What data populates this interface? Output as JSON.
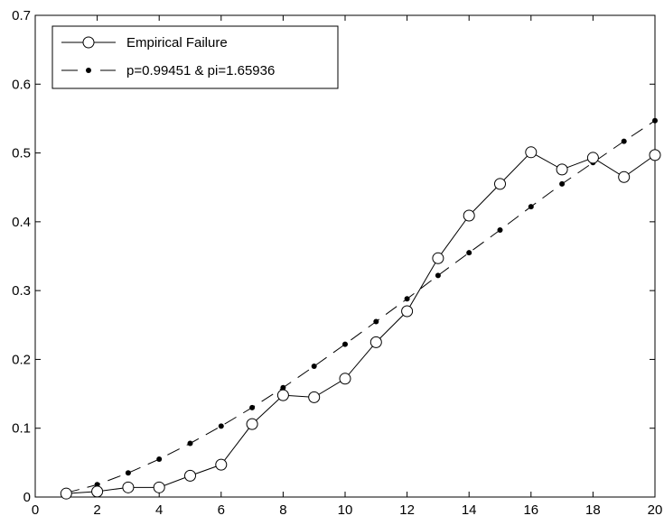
{
  "chart_data": {
    "type": "line",
    "title": "",
    "xlabel": "",
    "ylabel": "",
    "xlim": [
      0,
      20
    ],
    "ylim": [
      0,
      0.7
    ],
    "x_ticks": [
      "0",
      "2",
      "4",
      "6",
      "8",
      "10",
      "12",
      "14",
      "16",
      "18",
      "20"
    ],
    "y_ticks": [
      "0",
      "0.1",
      "0.2",
      "0.3",
      "0.4",
      "0.5",
      "0.6",
      "0.7"
    ],
    "grid": false,
    "legend_position": "top-left",
    "x": [
      1,
      2,
      3,
      4,
      5,
      6,
      7,
      8,
      9,
      10,
      11,
      12,
      13,
      14,
      15,
      16,
      17,
      18,
      19,
      20
    ],
    "series": [
      {
        "name": "Empirical Failure",
        "style": "solid line, open circle markers",
        "color": "#000000",
        "values": [
          0.005,
          0.008,
          0.014,
          0.014,
          0.031,
          0.047,
          0.106,
          0.148,
          0.145,
          0.172,
          0.225,
          0.27,
          0.347,
          0.409,
          0.455,
          0.501,
          0.476,
          0.493,
          0.465,
          0.497
        ]
      },
      {
        "name": "p=0.99451 & pi=1.65936",
        "style": "dashed line, filled dot markers",
        "color": "#000000",
        "values": [
          0.006,
          0.018,
          0.035,
          0.055,
          0.078,
          0.103,
          0.13,
          0.159,
          0.19,
          0.222,
          0.255,
          0.288,
          0.322,
          0.355,
          0.388,
          0.422,
          0.455,
          0.486,
          0.517,
          0.547
        ]
      }
    ]
  }
}
